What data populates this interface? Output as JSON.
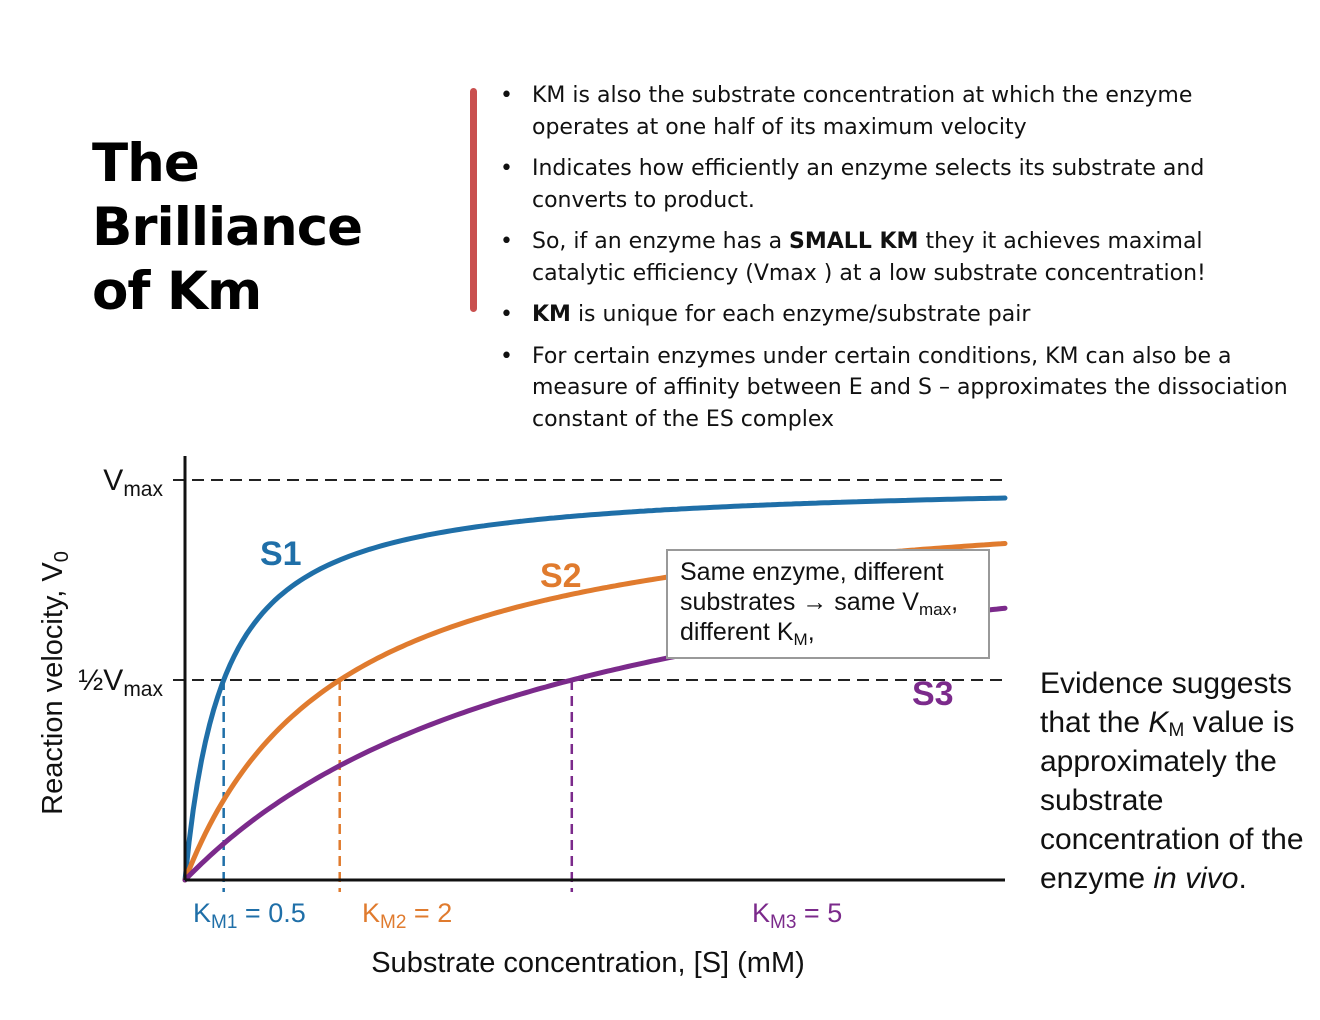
{
  "slide": {
    "title_line1": "The Brilliance",
    "title_line2": "of Km",
    "bullets": [
      {
        "pre": "KM is also the substrate concentration at which the enzyme operates at one half of its maximum velocity",
        "bold": "",
        "post": ""
      },
      {
        "pre": "Indicates how efficiently an enzyme selects its substrate and converts to product.",
        "bold": "",
        "post": ""
      },
      {
        "pre": "So, if an enzyme has a ",
        "bold": "SMALL KM",
        "post": " they it achieves maximal catalytic efficiency (Vmax ) at a low substrate concentration!"
      },
      {
        "pre": "",
        "bold": "KM",
        "post": " is unique for each enzyme/substrate pair"
      },
      {
        "pre": "For certain enzymes under certain conditions, KM can also be a measure of affinity between E and S – approximates the dissociation constant of the ES complex",
        "bold": "",
        "post": ""
      }
    ],
    "bullet_char": "•",
    "side_note": {
      "part1": "Evidence suggests that the ",
      "k": "K",
      "k_sub": "M",
      "part2": " value is approximately the substrate concentration of the enzyme ",
      "italic": "in vivo",
      "part3": "."
    },
    "accent_color": "#c9504f"
  },
  "chart_data": {
    "type": "line",
    "xlabel": "Substrate concentration, [S] (mM)",
    "ylabel_main": "Reaction velocity, V",
    "ylabel_sub": "0",
    "x_range": [
      0,
      10.6
    ],
    "y_range": [
      0,
      1
    ],
    "vmax": 1,
    "y_ticks": [
      {
        "value": 1,
        "main": "V",
        "sub": "max"
      },
      {
        "value": 0.5,
        "main": "½V",
        "sub": "max"
      }
    ],
    "series": [
      {
        "name": "S1",
        "km": 0.5,
        "color": "#1f6fa8",
        "km_label_main": "K",
        "km_label_sub": "M1",
        "km_label_value": " = 0.5"
      },
      {
        "name": "S2",
        "km": 2,
        "color": "#e07b2e",
        "km_label_main": "K",
        "km_label_sub": "M2",
        "km_label_value": " = 2"
      },
      {
        "name": "S3",
        "km": 5,
        "color": "#7b2a8b",
        "km_label_main": "K",
        "km_label_sub": "M3",
        "km_label_value": " = 5"
      }
    ],
    "legend_box": {
      "line1": "Same enzyme, different",
      "line2_pre": "substrates → same V",
      "line2_sub": "max",
      "line2_post": ",",
      "line3_pre": "different K",
      "line3_sub": "M",
      "line3_post": ","
    },
    "grid": false
  }
}
